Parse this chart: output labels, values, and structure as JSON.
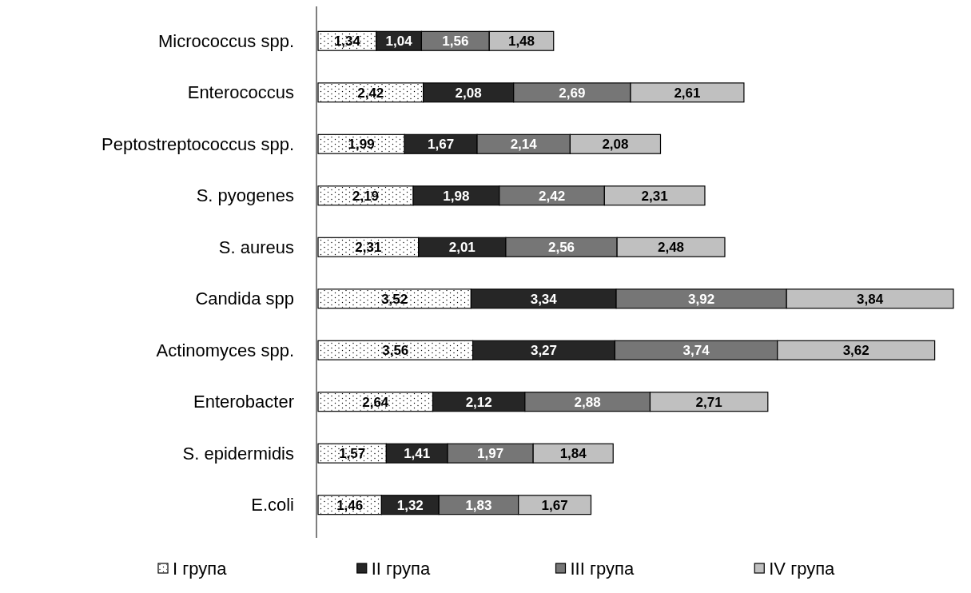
{
  "chart_data": {
    "type": "bar",
    "orientation": "horizontal",
    "stacked": true,
    "legend": "bottom",
    "grid": false,
    "categories": [
      "Micrococcus spp.",
      "Enterococcus",
      "Peptostreptococcus spp.",
      "S. pyogenes",
      "S. aureus",
      "Candida spp",
      "Actinomyces spp.",
      "Enterobacter",
      "S. epidermidis",
      "E.coli"
    ],
    "series": [
      {
        "name": "I група",
        "color": "#ffffff",
        "values": [
          1.34,
          2.42,
          1.99,
          2.19,
          2.31,
          3.52,
          3.56,
          2.64,
          1.57,
          1.46
        ],
        "value_labels": [
          "1,34",
          "2,42",
          "1,99",
          "2,19",
          "2,31",
          "3,52",
          "3,56",
          "2,64",
          "1,57",
          "1,46"
        ]
      },
      {
        "name": "II група",
        "color": "#262626",
        "values": [
          1.04,
          2.08,
          1.67,
          1.98,
          2.01,
          3.34,
          3.27,
          2.12,
          1.41,
          1.32
        ],
        "value_labels": [
          "1,04",
          "2,08",
          "1,67",
          "1,98",
          "2,01",
          "3,34",
          "3,27",
          "2,12",
          "1,41",
          "1,32"
        ]
      },
      {
        "name": "III група",
        "color": "#767676",
        "values": [
          1.56,
          2.69,
          2.14,
          2.42,
          2.56,
          3.92,
          3.74,
          2.88,
          1.97,
          1.83
        ],
        "value_labels": [
          "1,56",
          "2,69",
          "2,14",
          "2,42",
          "2,56",
          "3,92",
          "3,74",
          "2,88",
          "1,97",
          "1,83"
        ]
      },
      {
        "name": "IV група",
        "color": "#c0c0c0",
        "values": [
          1.48,
          2.61,
          2.08,
          2.31,
          2.48,
          3.84,
          3.62,
          2.71,
          1.84,
          1.67
        ],
        "value_labels": [
          "1,48",
          "2,61",
          "2,08",
          "2,31",
          "2,48",
          "3,84",
          "3,62",
          "2,71",
          "1,84",
          "1,67"
        ]
      }
    ]
  }
}
